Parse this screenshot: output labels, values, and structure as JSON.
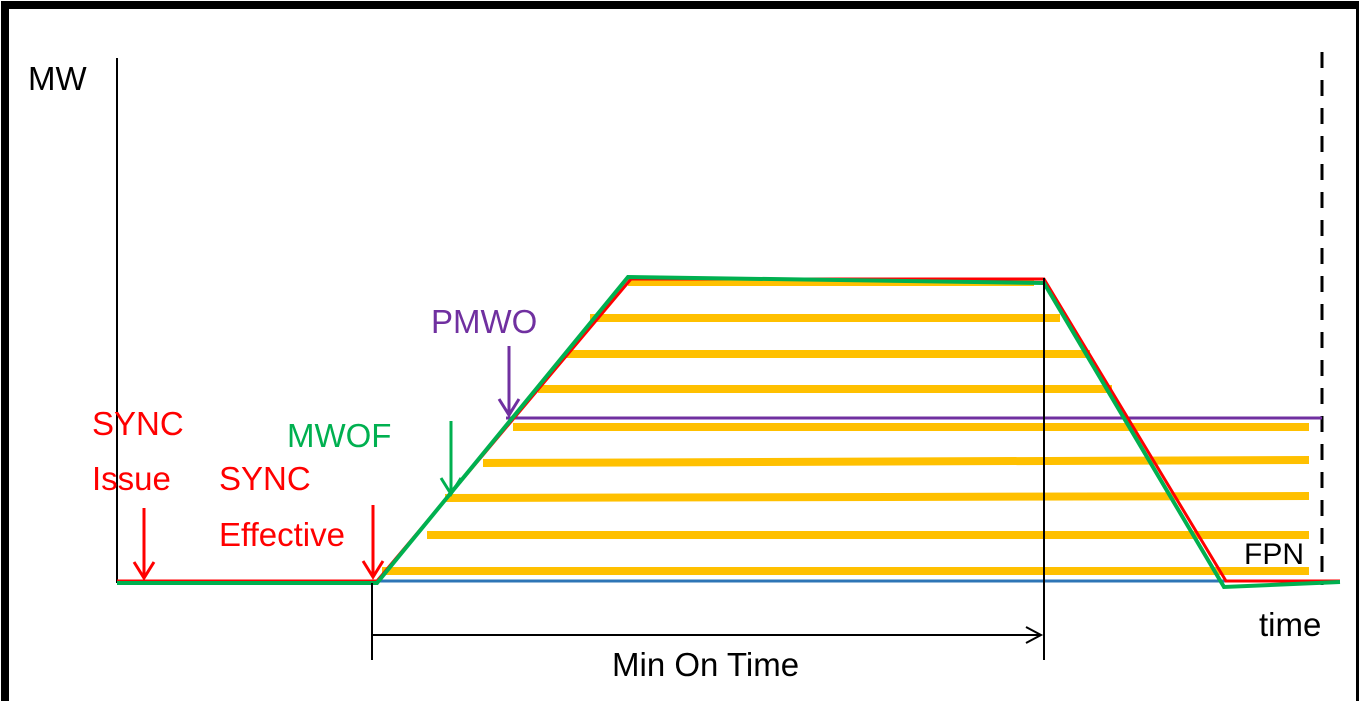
{
  "labels": {
    "y_axis": "MW",
    "x_axis": "time",
    "sync_issue_line1": "SYNC",
    "sync_issue_line2": "Issue",
    "sync_effective_line1": "SYNC",
    "sync_effective_line2": "Effective",
    "mwof": "MWOF",
    "pmwo": "PMWO",
    "fpn": "FPN",
    "min_on_time": "Min On Time"
  },
  "colors": {
    "frame": "#000000",
    "sync": "#ff0000",
    "mwof": "#00b050",
    "pmwo": "#7030a0",
    "bands": "#ffc000",
    "fpn_base": "#2e75b6",
    "guide": "#000000"
  }
}
